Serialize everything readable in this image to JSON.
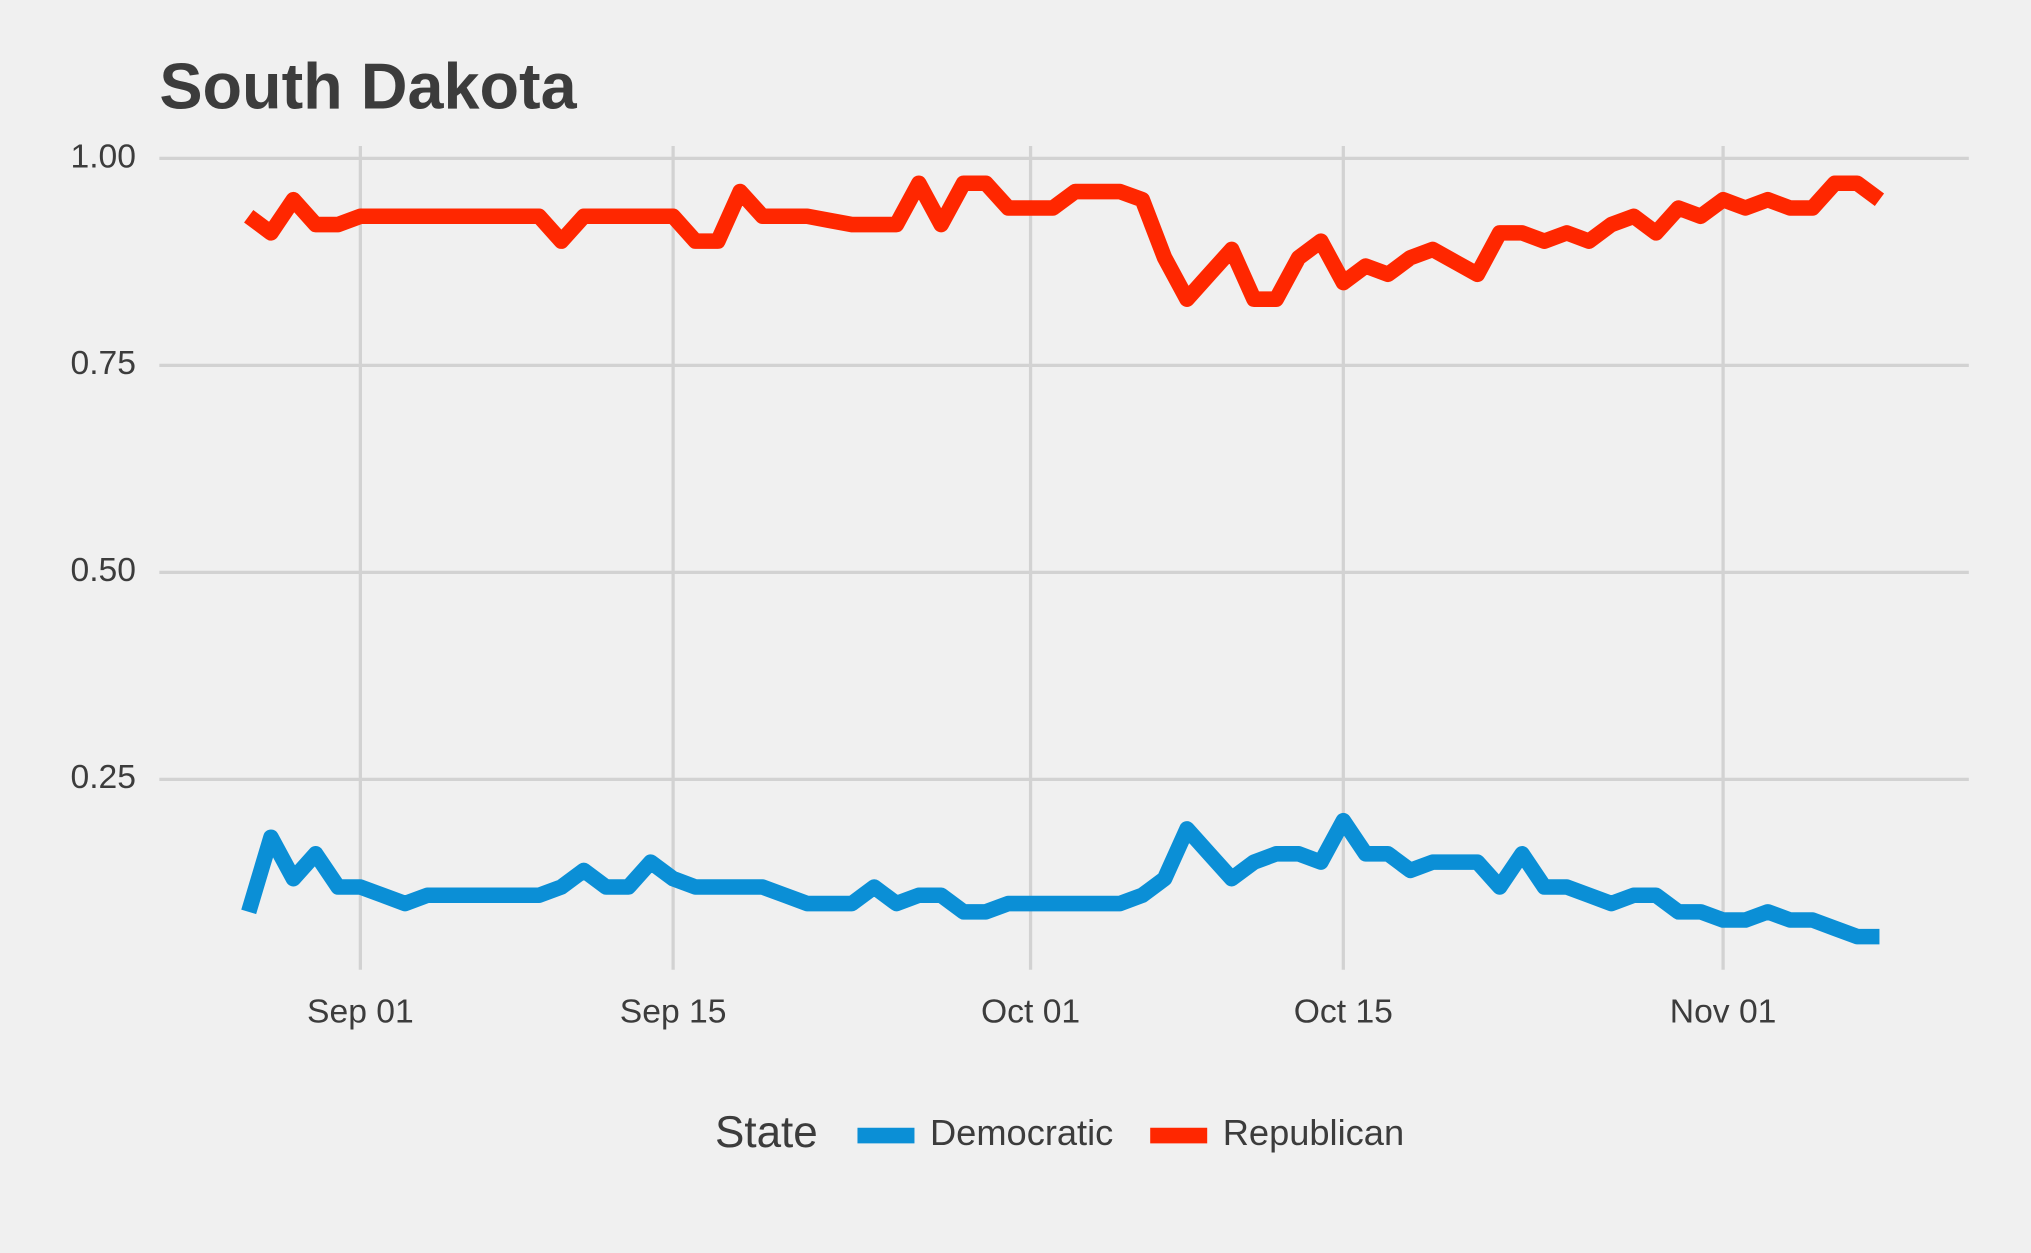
{
  "chart_data": {
    "type": "line",
    "title": "South Dakota",
    "legend_title": "State",
    "legend": "bottom",
    "grid": true,
    "x": [
      "08-27",
      "08-28",
      "08-29",
      "08-30",
      "08-31",
      "09-01",
      "09-02",
      "09-03",
      "09-04",
      "09-05",
      "09-06",
      "09-07",
      "09-08",
      "09-09",
      "09-10",
      "09-11",
      "09-12",
      "09-13",
      "09-14",
      "09-15",
      "09-16",
      "09-17",
      "09-18",
      "09-19",
      "09-20",
      "09-21",
      "09-22",
      "09-23",
      "09-24",
      "09-25",
      "09-26",
      "09-27",
      "09-28",
      "09-29",
      "09-30",
      "10-01",
      "10-02",
      "10-03",
      "10-04",
      "10-05",
      "10-06",
      "10-07",
      "10-08",
      "10-09",
      "10-10",
      "10-11",
      "10-12",
      "10-13",
      "10-14",
      "10-15",
      "10-16",
      "10-17",
      "10-18",
      "10-19",
      "10-20",
      "10-21",
      "10-22",
      "10-23",
      "10-24",
      "10-25",
      "10-26",
      "10-27",
      "10-28",
      "10-29",
      "10-30",
      "10-31",
      "11-01",
      "11-02",
      "11-03",
      "11-04",
      "11-05",
      "11-06",
      "11-07",
      "11-08"
    ],
    "xlim": [
      "08-23",
      "11-12"
    ],
    "xticks": [
      {
        "value": "09-01",
        "label": "Sep 01"
      },
      {
        "value": "09-15",
        "label": "Sep 15"
      },
      {
        "value": "10-01",
        "label": "Oct 01"
      },
      {
        "value": "10-15",
        "label": "Oct 15"
      },
      {
        "value": "11-01",
        "label": "Nov 01"
      }
    ],
    "ylim": [
      0.02,
      1.015
    ],
    "yticks": [
      {
        "value": 0.25,
        "label": "0.25"
      },
      {
        "value": 0.5,
        "label": "0.50"
      },
      {
        "value": 0.75,
        "label": "0.75"
      },
      {
        "value": 1,
        "label": "1.00"
      }
    ],
    "series": [
      {
        "name": "Democratic",
        "color": "#0b8fd6",
        "values": [
          0.09,
          0.18,
          0.13,
          0.16,
          0.12,
          0.12,
          0.11,
          0.1,
          0.11,
          0.11,
          0.11,
          0.11,
          0.11,
          0.11,
          0.12,
          0.14,
          0.12,
          0.12,
          0.15,
          0.13,
          0.12,
          0.12,
          0.12,
          0.12,
          0.11,
          0.1,
          0.1,
          0.1,
          0.12,
          0.1,
          0.11,
          0.11,
          0.09,
          0.09,
          0.1,
          0.1,
          0.1,
          0.1,
          0.1,
          0.1,
          0.11,
          0.13,
          0.19,
          0.16,
          0.13,
          0.15,
          0.16,
          0.16,
          0.15,
          0.2,
          0.16,
          0.16,
          0.14,
          0.15,
          0.15,
          0.15,
          0.12,
          0.16,
          0.12,
          0.12,
          0.11,
          0.1,
          0.11,
          0.11,
          0.09,
          0.09,
          0.08,
          0.08,
          0.09,
          0.08,
          0.08,
          0.07,
          0.06,
          0.06
        ]
      },
      {
        "name": "Republican",
        "color": "#ff2700",
        "values": [
          0.93,
          0.91,
          0.95,
          0.92,
          0.92,
          0.93,
          0.93,
          0.93,
          0.93,
          0.93,
          0.93,
          0.93,
          0.93,
          0.93,
          0.9,
          0.93,
          0.93,
          0.93,
          0.93,
          0.93,
          0.9,
          0.9,
          0.96,
          0.93,
          0.93,
          0.93,
          0.925,
          0.92,
          0.92,
          0.92,
          0.97,
          0.92,
          0.97,
          0.97,
          0.94,
          0.94,
          0.94,
          0.96,
          0.96,
          0.96,
          0.95,
          0.88,
          0.83,
          0.86,
          0.89,
          0.83,
          0.83,
          0.88,
          0.9,
          0.85,
          0.87,
          0.86,
          0.88,
          0.89,
          0.875,
          0.86,
          0.91,
          0.91,
          0.9,
          0.91,
          0.9,
          0.92,
          0.93,
          0.91,
          0.94,
          0.93,
          0.95,
          0.94,
          0.95,
          0.94,
          0.94,
          0.97,
          0.97,
          0.95
        ]
      }
    ]
  }
}
